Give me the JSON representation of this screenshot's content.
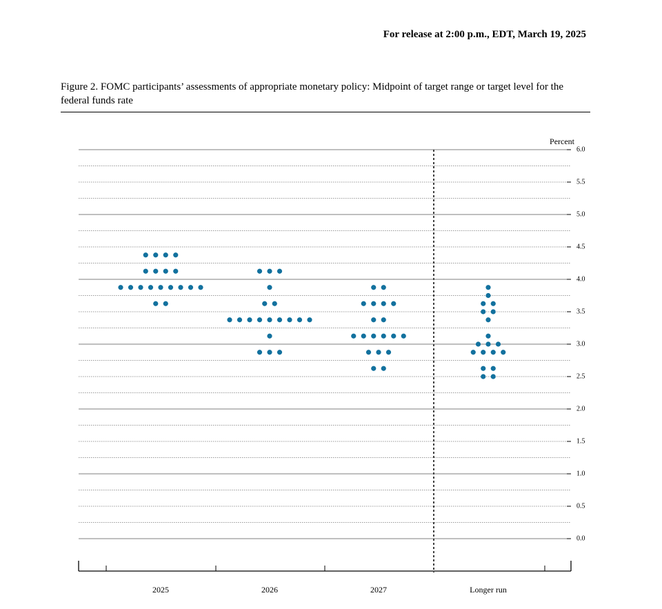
{
  "release": "For release at 2:00 p.m., EDT, March 19, 2025",
  "chart_data": {
    "type": "dot",
    "title": "Figure 2.  FOMC participants’ assessments of appropriate monetary policy: Midpoint of target range or target level for the federal funds rate",
    "y_label": "Percent",
    "categories": [
      "2025",
      "2026",
      "2027",
      "Longer run"
    ],
    "values": [
      [
        4.375,
        4.375,
        4.375,
        4.375,
        4.125,
        4.125,
        4.125,
        4.125,
        3.875,
        3.875,
        3.875,
        3.875,
        3.875,
        3.875,
        3.875,
        3.875,
        3.875,
        3.625,
        3.625
      ],
      [
        4.125,
        4.125,
        4.125,
        3.875,
        3.625,
        3.625,
        3.375,
        3.375,
        3.375,
        3.375,
        3.375,
        3.375,
        3.375,
        3.375,
        3.375,
        3.125,
        2.875,
        2.875,
        2.875
      ],
      [
        3.875,
        3.875,
        3.625,
        3.625,
        3.625,
        3.625,
        3.375,
        3.375,
        3.125,
        3.125,
        3.125,
        3.125,
        3.125,
        3.125,
        2.875,
        2.875,
        2.875,
        2.625,
        2.625
      ],
      [
        3.875,
        3.75,
        3.625,
        3.625,
        3.5,
        3.5,
        3.375,
        3.125,
        3.0,
        3.0,
        3.0,
        2.875,
        2.875,
        2.875,
        2.875,
        2.625,
        2.625,
        2.5,
        2.5
      ]
    ],
    "color": "#12719e",
    "ylim": [
      0,
      6
    ],
    "yticks": [
      {
        "value": 0,
        "label": "0.0"
      },
      0.5,
      {
        "value": 1,
        "label": "1.0"
      },
      1.5,
      {
        "value": 2,
        "label": "2.0"
      },
      2.5,
      {
        "value": 3,
        "label": "3.0"
      },
      3.5,
      {
        "value": 4,
        "label": "4.0"
      },
      4.5,
      {
        "value": 5,
        "label": "5.0"
      },
      5.5,
      {
        "value": 6,
        "label": "6.0"
      }
    ],
    "minor_yticks": [
      0.25,
      0.75,
      1.25,
      1.75,
      2.25,
      2.75,
      3.25,
      3.75,
      4.25,
      4.75,
      5.25,
      5.75
    ],
    "grid": true
  }
}
